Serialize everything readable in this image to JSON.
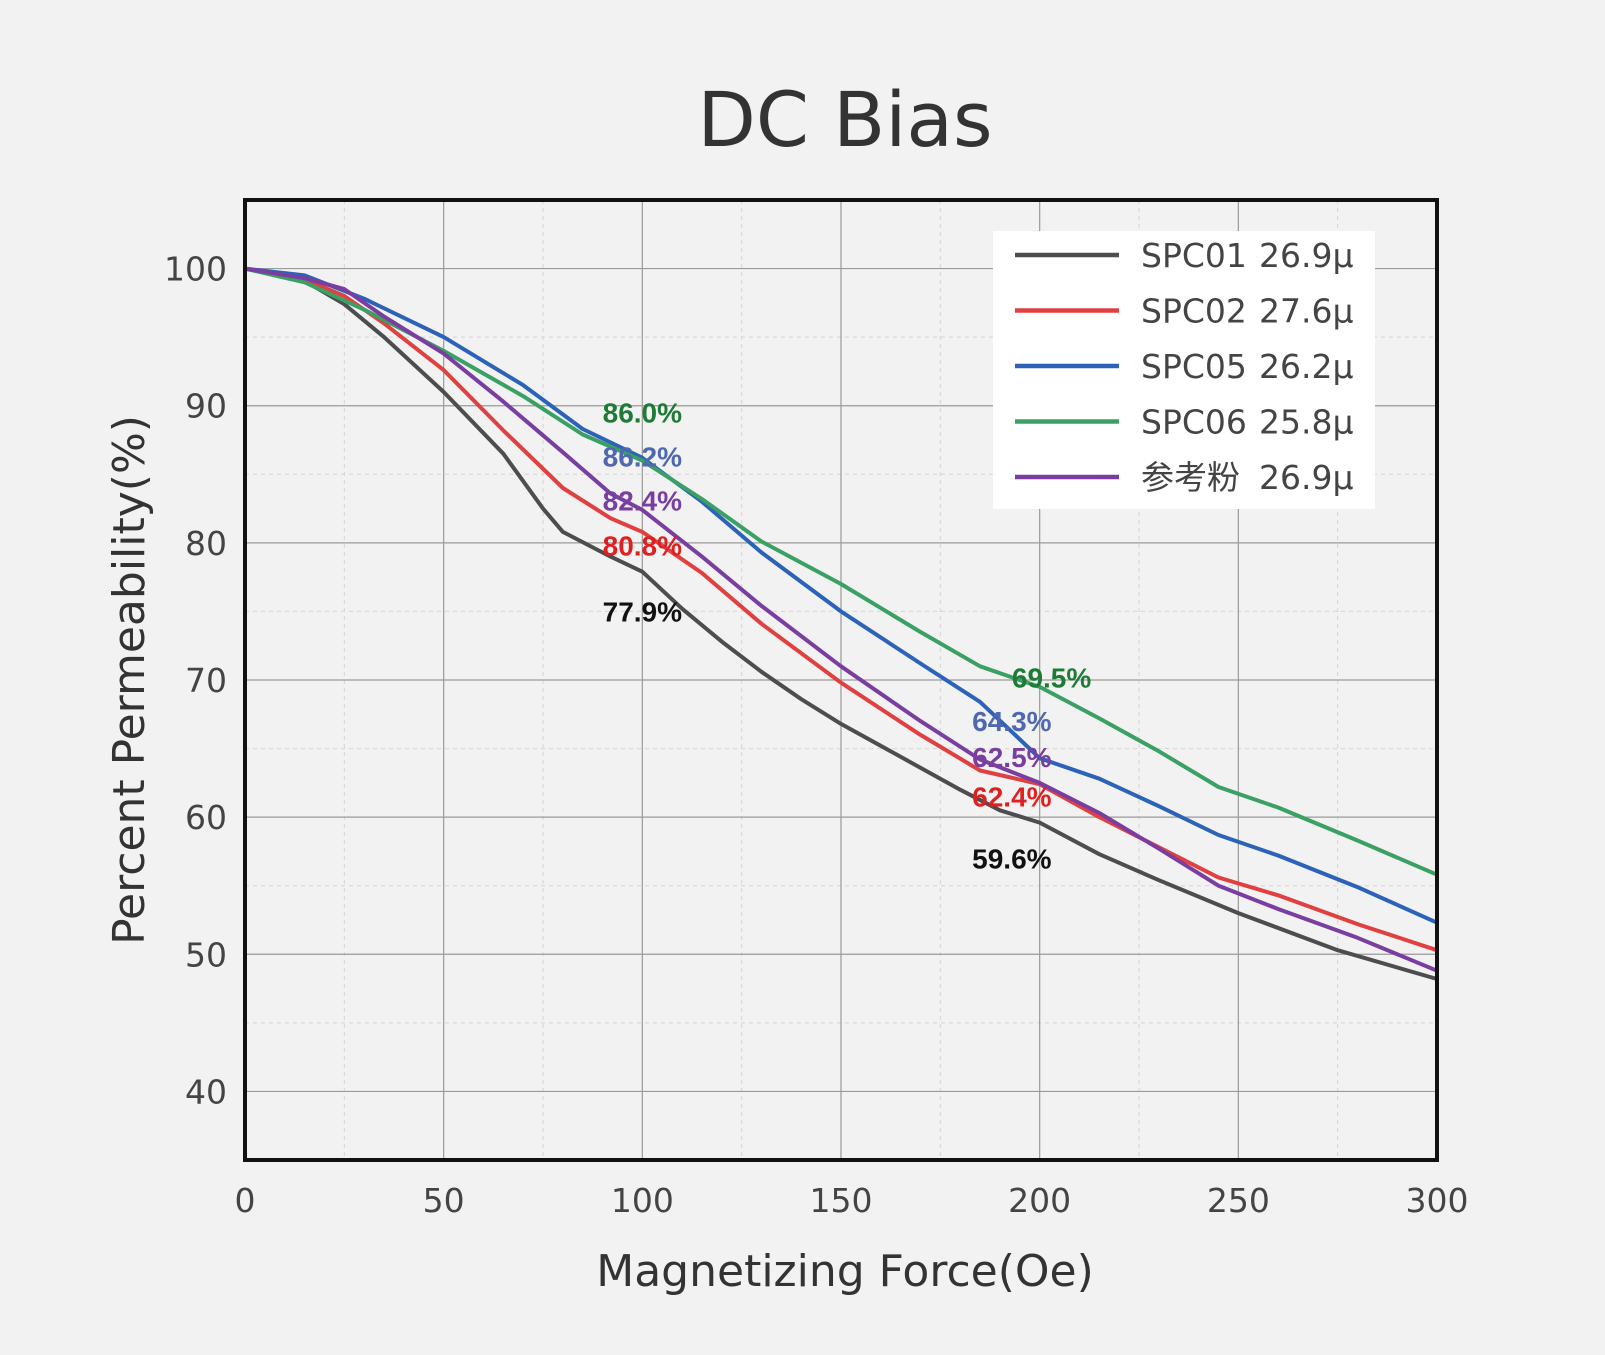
{
  "chart_data": {
    "type": "line",
    "title": "DC Bias",
    "xlabel": "Magnetizing Force(Oe)",
    "ylabel": "Percent Permeability(%)",
    "xlim": [
      0,
      300
    ],
    "ylim": [
      35,
      105
    ],
    "x_ticks": [
      0,
      50,
      100,
      150,
      200,
      250,
      300
    ],
    "y_ticks": [
      40,
      50,
      60,
      70,
      80,
      90,
      100
    ],
    "grid": true,
    "legend_position": "top-right",
    "series": [
      {
        "name": "SPC01",
        "mu": "26.9μ",
        "color": "#4d4d4d",
        "points": [
          [
            0,
            100
          ],
          [
            15,
            99.1
          ],
          [
            25,
            97.4
          ],
          [
            35,
            95
          ],
          [
            50,
            91
          ],
          [
            65,
            86.5
          ],
          [
            75,
            82.5
          ],
          [
            80,
            80.8
          ],
          [
            92,
            79
          ],
          [
            100,
            77.9
          ],
          [
            110,
            75.2
          ],
          [
            120,
            72.8
          ],
          [
            130,
            70.6
          ],
          [
            140,
            68.6
          ],
          [
            150,
            66.8
          ],
          [
            165,
            64.4
          ],
          [
            180,
            62
          ],
          [
            190,
            60.5
          ],
          [
            200,
            59.6
          ],
          [
            215,
            57.3
          ],
          [
            230,
            55.4
          ],
          [
            250,
            53
          ],
          [
            275,
            50.3
          ],
          [
            300,
            48.2
          ]
        ]
      },
      {
        "name": "SPC02",
        "mu": "27.6μ",
        "color": "#e04040",
        "points": [
          [
            0,
            100
          ],
          [
            15,
            99.2
          ],
          [
            25,
            98
          ],
          [
            35,
            96
          ],
          [
            50,
            92.6
          ],
          [
            65,
            88.2
          ],
          [
            80,
            84
          ],
          [
            92,
            81.8
          ],
          [
            100,
            80.8
          ],
          [
            115,
            77.8
          ],
          [
            130,
            74.1
          ],
          [
            150,
            69.8
          ],
          [
            170,
            66
          ],
          [
            185,
            63.4
          ],
          [
            200,
            62.4
          ],
          [
            215,
            60
          ],
          [
            230,
            57.8
          ],
          [
            245,
            55.6
          ],
          [
            260,
            54.3
          ],
          [
            280,
            52.2
          ],
          [
            300,
            50.3
          ]
        ]
      },
      {
        "name": "SPC05",
        "mu": "26.2μ",
        "color": "#2c63b8",
        "points": [
          [
            0,
            100
          ],
          [
            15,
            99.5
          ],
          [
            30,
            97.8
          ],
          [
            50,
            95
          ],
          [
            70,
            91.5
          ],
          [
            85,
            88.3
          ],
          [
            100,
            86.2
          ],
          [
            115,
            83
          ],
          [
            130,
            79.3
          ],
          [
            150,
            75
          ],
          [
            170,
            71.2
          ],
          [
            185,
            68.4
          ],
          [
            200,
            64.3
          ],
          [
            215,
            62.8
          ],
          [
            230,
            60.8
          ],
          [
            245,
            58.7
          ],
          [
            260,
            57.2
          ],
          [
            280,
            54.9
          ],
          [
            300,
            52.3
          ]
        ]
      },
      {
        "name": "SPC06",
        "mu": "25.8μ",
        "color": "#3aa063",
        "points": [
          [
            0,
            100
          ],
          [
            15,
            99
          ],
          [
            30,
            97
          ],
          [
            50,
            94
          ],
          [
            70,
            90.7
          ],
          [
            85,
            87.9
          ],
          [
            100,
            86.0
          ],
          [
            115,
            83.2
          ],
          [
            130,
            80.1
          ],
          [
            150,
            77
          ],
          [
            170,
            73.5
          ],
          [
            185,
            71
          ],
          [
            200,
            69.5
          ],
          [
            215,
            67.2
          ],
          [
            230,
            64.8
          ],
          [
            245,
            62.2
          ],
          [
            260,
            60.7
          ],
          [
            280,
            58.3
          ],
          [
            300,
            55.8
          ]
        ]
      },
      {
        "name": "参考粉",
        "mu": "26.9μ",
        "color": "#7a3ea0",
        "points": [
          [
            0,
            100
          ],
          [
            15,
            99.3
          ],
          [
            25,
            98.5
          ],
          [
            35,
            96.5
          ],
          [
            50,
            93.8
          ],
          [
            65,
            90.3
          ],
          [
            80,
            86.6
          ],
          [
            92,
            83.6
          ],
          [
            100,
            82.4
          ],
          [
            115,
            79
          ],
          [
            130,
            75.4
          ],
          [
            150,
            71
          ],
          [
            170,
            67
          ],
          [
            185,
            64.2
          ],
          [
            200,
            62.5
          ],
          [
            215,
            60.3
          ],
          [
            230,
            57.7
          ],
          [
            245,
            55
          ],
          [
            260,
            53.3
          ],
          [
            280,
            51.2
          ],
          [
            300,
            48.8
          ]
        ]
      }
    ],
    "annotations": [
      {
        "text": "86.0%",
        "x": 100,
        "y": 89.5,
        "color": "#1e7a34"
      },
      {
        "text": "86.2%",
        "x": 100,
        "y": 86.3,
        "color": "#5068b0"
      },
      {
        "text": "82.4%",
        "x": 100,
        "y": 83.1,
        "color": "#7a3ea0"
      },
      {
        "text": "80.8%",
        "x": 100,
        "y": 79.8,
        "color": "#e02020"
      },
      {
        "text": "77.9%",
        "x": 100,
        "y": 75.0,
        "color": "#111111"
      },
      {
        "text": "69.5%",
        "x": 203,
        "y": 70.2,
        "color": "#1e7a34"
      },
      {
        "text": "64.3%",
        "x": 193,
        "y": 67.0,
        "color": "#5068b0"
      },
      {
        "text": "62.5%",
        "x": 193,
        "y": 64.4,
        "color": "#7a3ea0"
      },
      {
        "text": "62.4%",
        "x": 193,
        "y": 61.5,
        "color": "#e02020"
      },
      {
        "text": "59.6%",
        "x": 193,
        "y": 57.0,
        "color": "#111111"
      }
    ]
  }
}
